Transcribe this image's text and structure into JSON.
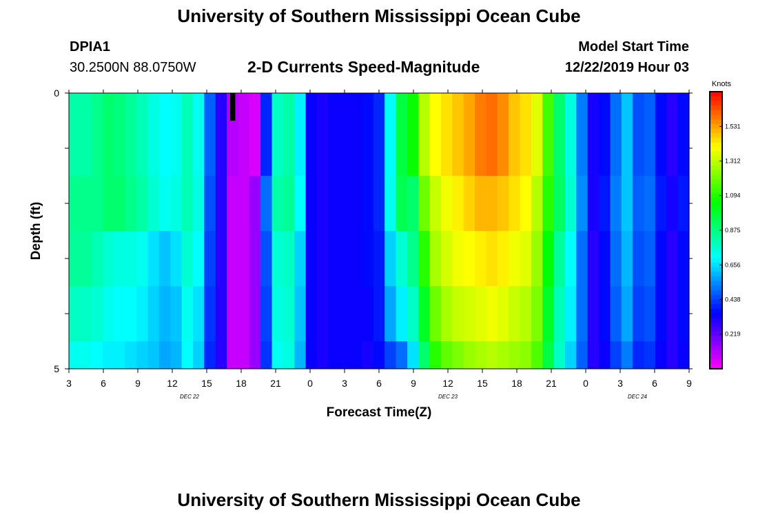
{
  "header": {
    "title": "University of Southern Mississippi Ocean Cube",
    "station": "DPIA1",
    "coordinates": "30.2500N 88.0750W",
    "subtitle": "2-D Currents Speed-Magnitude",
    "model_start_label": "Model Start Time",
    "model_start_value": "12/22/2019 Hour 03"
  },
  "footer": {
    "title": "University of Southern Mississippi Ocean Cube"
  },
  "chart_data": {
    "type": "heatmap",
    "title": "2-D Currents Speed-Magnitude",
    "xlabel": "Forecast Time(Z)",
    "ylabel": "Depth (ft)",
    "x_ticks": [
      "3",
      "6",
      "9",
      "12",
      "15",
      "18",
      "21",
      "0",
      "3",
      "6",
      "9",
      "12",
      "15",
      "18",
      "21",
      "0",
      "3",
      "6",
      "9"
    ],
    "x_range_hours": [
      0,
      54
    ],
    "y_ticks": [
      "0",
      "5"
    ],
    "y_range": [
      0,
      5
    ],
    "day_labels": [
      {
        "text": "DEC 22",
        "hour": 10.5
      },
      {
        "text": "DEC 23",
        "hour": 33
      },
      {
        "text": "DEC 24",
        "hour": 49.5
      }
    ],
    "colorbar": {
      "unit": "Knots",
      "min": 0.0,
      "max": 1.75,
      "ticks": [
        "1.531",
        "1.312",
        "1.094",
        "0.875",
        "0.656",
        "0.438",
        "0.219"
      ],
      "tick_values": [
        1.531,
        1.312,
        1.094,
        0.875,
        0.656,
        0.438,
        0.219
      ]
    },
    "depth_bins": 5,
    "time_bins": 55,
    "speed_knots": [
      [
        0.82,
        0.82,
        0.86,
        0.9,
        0.88,
        0.84,
        0.8,
        0.74,
        0.7,
        0.72,
        0.8,
        0.72,
        0.48,
        0.3,
        0.1,
        0.08,
        0.05,
        0.4,
        0.78,
        0.82,
        0.68,
        0.34,
        0.32,
        0.34,
        0.34,
        0.34,
        0.36,
        0.4,
        0.7,
        0.96,
        1.06,
        1.3,
        1.4,
        1.44,
        1.48,
        1.52,
        1.58,
        1.6,
        1.56,
        1.48,
        1.44,
        1.36,
        1.14,
        0.9,
        0.74,
        0.52,
        0.32,
        0.36,
        0.5,
        0.62,
        0.46,
        0.48,
        0.36,
        0.3,
        0.36
      ],
      [
        0.86,
        0.86,
        0.86,
        0.9,
        0.9,
        0.86,
        0.82,
        0.76,
        0.72,
        0.74,
        0.8,
        0.74,
        0.46,
        0.3,
        0.08,
        0.08,
        0.14,
        0.5,
        0.82,
        0.84,
        0.7,
        0.34,
        0.32,
        0.34,
        0.34,
        0.34,
        0.36,
        0.4,
        0.72,
        0.94,
        0.9,
        1.2,
        1.32,
        1.38,
        1.42,
        1.46,
        1.5,
        1.5,
        1.48,
        1.44,
        1.4,
        1.3,
        1.1,
        0.92,
        0.76,
        0.54,
        0.32,
        0.38,
        0.52,
        0.62,
        0.48,
        0.5,
        0.38,
        0.32,
        0.38
      ],
      [
        0.84,
        0.84,
        0.8,
        0.76,
        0.74,
        0.74,
        0.72,
        0.66,
        0.62,
        0.66,
        0.76,
        0.7,
        0.44,
        0.3,
        0.08,
        0.08,
        0.14,
        0.46,
        0.76,
        0.78,
        0.64,
        0.34,
        0.32,
        0.34,
        0.34,
        0.34,
        0.36,
        0.38,
        0.64,
        0.76,
        0.86,
        1.1,
        1.28,
        1.34,
        1.38,
        1.4,
        1.42,
        1.44,
        1.42,
        1.38,
        1.36,
        1.26,
        1.04,
        0.84,
        0.7,
        0.5,
        0.3,
        0.36,
        0.5,
        0.6,
        0.46,
        0.48,
        0.36,
        0.3,
        0.36
      ],
      [
        0.78,
        0.78,
        0.76,
        0.72,
        0.7,
        0.7,
        0.68,
        0.64,
        0.6,
        0.62,
        0.72,
        0.66,
        0.42,
        0.3,
        0.08,
        0.08,
        0.14,
        0.44,
        0.74,
        0.76,
        0.62,
        0.34,
        0.32,
        0.34,
        0.34,
        0.34,
        0.34,
        0.38,
        0.58,
        0.68,
        0.78,
        1.0,
        1.2,
        1.28,
        1.32,
        1.34,
        1.36,
        1.38,
        1.36,
        1.32,
        1.3,
        1.22,
        1.0,
        0.8,
        0.68,
        0.5,
        0.3,
        0.36,
        0.48,
        0.58,
        0.44,
        0.46,
        0.36,
        0.3,
        0.36
      ],
      [
        0.72,
        0.72,
        0.7,
        0.68,
        0.68,
        0.66,
        0.64,
        0.62,
        0.58,
        0.6,
        0.7,
        0.64,
        0.4,
        0.3,
        0.08,
        0.08,
        0.14,
        0.42,
        0.72,
        0.74,
        0.6,
        0.34,
        0.32,
        0.34,
        0.34,
        0.34,
        0.32,
        0.36,
        0.44,
        0.5,
        0.66,
        0.9,
        1.1,
        1.18,
        1.22,
        1.26,
        1.28,
        1.3,
        1.28,
        1.26,
        1.24,
        1.16,
        0.96,
        0.78,
        0.64,
        0.48,
        0.3,
        0.34,
        0.44,
        0.52,
        0.4,
        0.42,
        0.34,
        0.3,
        0.34
      ]
    ],
    "missing_cells": [
      {
        "depth_bin": 0,
        "time_bin": 14
      }
    ]
  }
}
